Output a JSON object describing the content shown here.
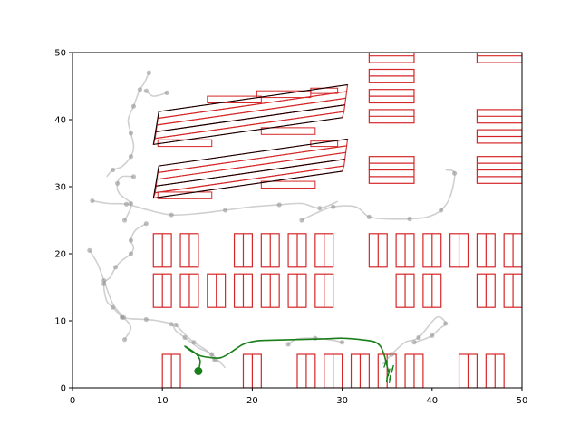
{
  "chart_data": {
    "type": "scatter",
    "title": "",
    "xlabel": "",
    "ylabel": "",
    "xlim": [
      0,
      50
    ],
    "ylim": [
      0,
      50
    ],
    "grid": false,
    "x_ticks": [
      "0",
      "10",
      "20",
      "30",
      "40",
      "50"
    ],
    "y_ticks": [
      "0",
      "10",
      "20",
      "30",
      "40",
      "50"
    ],
    "colors": {
      "parking_outline": "#d62728",
      "parking_line": "#000000",
      "ghost_trajectories": "#a9a9a9",
      "ego_path": "#1a7f1a",
      "ego_start": "#1a7f1a"
    },
    "parking_blocks": [
      {
        "x": 10,
        "y": 0,
        "w": 2,
        "h": 5,
        "n": 1
      },
      {
        "x": 19,
        "y": 0,
        "w": 2,
        "h": 5,
        "n": 1
      },
      {
        "x": 25,
        "y": 0,
        "w": 2,
        "h": 5,
        "n": 1
      },
      {
        "x": 28,
        "y": 0,
        "w": 2,
        "h": 5,
        "n": 1
      },
      {
        "x": 31,
        "y": 0,
        "w": 2,
        "h": 5,
        "n": 1
      },
      {
        "x": 34,
        "y": 0,
        "w": 2,
        "h": 5,
        "n": 1
      },
      {
        "x": 37,
        "y": 0,
        "w": 2,
        "h": 5,
        "n": 1
      },
      {
        "x": 43,
        "y": 0,
        "w": 2,
        "h": 5,
        "n": 1
      },
      {
        "x": 46,
        "y": 0,
        "w": 2,
        "h": 5,
        "n": 1
      },
      {
        "x": 9,
        "y": 12,
        "w": 2,
        "h": 5,
        "n": 1
      },
      {
        "x": 12,
        "y": 12,
        "w": 2,
        "h": 5,
        "n": 1
      },
      {
        "x": 15,
        "y": 12,
        "w": 2,
        "h": 5,
        "n": 1
      },
      {
        "x": 18,
        "y": 12,
        "w": 2,
        "h": 5,
        "n": 1
      },
      {
        "x": 21,
        "y": 12,
        "w": 2,
        "h": 5,
        "n": 1
      },
      {
        "x": 24,
        "y": 12,
        "w": 2,
        "h": 5,
        "n": 1
      },
      {
        "x": 27,
        "y": 12,
        "w": 2,
        "h": 5,
        "n": 1
      },
      {
        "x": 36,
        "y": 12,
        "w": 2,
        "h": 5,
        "n": 1
      },
      {
        "x": 39,
        "y": 12,
        "w": 2,
        "h": 5,
        "n": 1
      },
      {
        "x": 45,
        "y": 12,
        "w": 2,
        "h": 5,
        "n": 1
      },
      {
        "x": 48,
        "y": 12,
        "w": 2,
        "h": 5,
        "n": 1
      },
      {
        "x": 9,
        "y": 18,
        "w": 2,
        "h": 5,
        "n": 1
      },
      {
        "x": 12,
        "y": 18,
        "w": 2,
        "h": 5,
        "n": 1
      },
      {
        "x": 18,
        "y": 18,
        "w": 2,
        "h": 5,
        "n": 1
      },
      {
        "x": 21,
        "y": 18,
        "w": 2,
        "h": 5,
        "n": 1
      },
      {
        "x": 24,
        "y": 18,
        "w": 2,
        "h": 5,
        "n": 1
      },
      {
        "x": 27,
        "y": 18,
        "w": 2,
        "h": 5,
        "n": 1
      },
      {
        "x": 33,
        "y": 18,
        "w": 2,
        "h": 5,
        "n": 1
      },
      {
        "x": 36,
        "y": 18,
        "w": 2,
        "h": 5,
        "n": 1
      },
      {
        "x": 39,
        "y": 18,
        "w": 2,
        "h": 5,
        "n": 1
      },
      {
        "x": 42,
        "y": 18,
        "w": 2,
        "h": 5,
        "n": 1
      },
      {
        "x": 45,
        "y": 18,
        "w": 2,
        "h": 5,
        "n": 1
      },
      {
        "x": 48,
        "y": 18,
        "w": 2,
        "h": 5,
        "n": 1
      }
    ],
    "parking_stacks": [
      {
        "x": 33,
        "y": 30.5,
        "w": 5,
        "h": 2,
        "n": 2
      },
      {
        "x": 33,
        "y": 39.5,
        "w": 5,
        "h": 2,
        "n": 1
      },
      {
        "x": 33,
        "y": 42.5,
        "w": 5,
        "h": 2,
        "n": 1
      },
      {
        "x": 33,
        "y": 45.5,
        "w": 5,
        "h": 2,
        "n": 1
      },
      {
        "x": 33,
        "y": 48.5,
        "w": 5,
        "h": 2,
        "n": 1
      },
      {
        "x": 45,
        "y": 30.5,
        "w": 5,
        "h": 2,
        "n": 2
      },
      {
        "x": 45,
        "y": 36.5,
        "w": 5,
        "h": 2,
        "n": 1
      },
      {
        "x": 45,
        "y": 39.5,
        "w": 5,
        "h": 2,
        "n": 1
      },
      {
        "x": 45,
        "y": 48.5,
        "w": 5,
        "h": 2,
        "n": 1
      }
    ],
    "slanted_groups": [
      {
        "steps": [
          [
            9,
            28.3
          ],
          [
            9.2,
            29.1
          ],
          [
            9.3,
            30.1
          ],
          [
            9.4,
            31.1
          ],
          [
            9.5,
            32.1
          ],
          [
            9.6,
            33.1
          ]
        ],
        "width": 21,
        "rise": 4,
        "extras": [
          [
            9.5,
            28.2,
            6,
            1
          ],
          [
            21,
            29.8,
            6,
            1
          ],
          [
            26.5,
            36,
            3,
            0.8
          ]
        ]
      },
      {
        "steps": [
          [
            9,
            36.3
          ],
          [
            9.2,
            37.2
          ],
          [
            9.3,
            38.2
          ],
          [
            9.4,
            39.2
          ],
          [
            9.5,
            40.2
          ],
          [
            9.6,
            41.2
          ]
        ],
        "width": 21,
        "rise": 4,
        "extras": [
          [
            9.5,
            36,
            6,
            1
          ],
          [
            21,
            37.8,
            6,
            1
          ],
          [
            26.5,
            43.9,
            3,
            0.8
          ],
          [
            15,
            42.5,
            6,
            1
          ],
          [
            20.5,
            43.3,
            6,
            1
          ]
        ]
      }
    ],
    "ghost_trajectories": [
      [
        [
          8.5,
          47
        ],
        [
          8.0,
          45.5
        ],
        [
          7.5,
          44.5
        ],
        [
          7.2,
          43.5
        ],
        [
          6.8,
          42
        ],
        [
          6.2,
          40
        ],
        [
          6.5,
          38
        ],
        [
          6.8,
          36
        ],
        [
          6.5,
          34.5
        ],
        [
          5.5,
          33
        ],
        [
          4.5,
          32.5
        ],
        [
          3.8,
          31.5
        ]
      ],
      [
        [
          8.2,
          44.3
        ],
        [
          9,
          43.5
        ],
        [
          10.5,
          44
        ]
      ],
      [
        [
          6.8,
          31.5
        ],
        [
          5.5,
          31.5
        ],
        [
          5,
          30.5
        ],
        [
          5.2,
          29
        ],
        [
          6.5,
          27.5
        ],
        [
          6.2,
          26
        ],
        [
          5.8,
          25
        ]
      ],
      [
        [
          2.2,
          27.9
        ],
        [
          4,
          27.5
        ],
        [
          6,
          27.4
        ],
        [
          8.5,
          26.5
        ],
        [
          11,
          25.8
        ],
        [
          14,
          26
        ],
        [
          17,
          26.5
        ],
        [
          20,
          27
        ],
        [
          23,
          27.3
        ],
        [
          25.5,
          27.5
        ],
        [
          27.5,
          26.8
        ],
        [
          29.5,
          27.8
        ]
      ],
      [
        [
          25.5,
          25
        ],
        [
          27,
          26
        ],
        [
          29,
          27
        ],
        [
          31.5,
          27
        ],
        [
          33,
          25.5
        ],
        [
          35,
          25.2
        ],
        [
          37.5,
          25.2
        ],
        [
          39.5,
          25.5
        ],
        [
          41,
          26.5
        ],
        [
          42,
          28.5
        ],
        [
          42.5,
          32
        ],
        [
          41.5,
          32.5
        ]
      ],
      [
        [
          8.2,
          24.5
        ],
        [
          7,
          23.5
        ],
        [
          6.5,
          22
        ],
        [
          6.8,
          21
        ],
        [
          6.5,
          20
        ],
        [
          5.5,
          19
        ],
        [
          4.8,
          18
        ],
        [
          4.2,
          16.5
        ],
        [
          3.5,
          15.5
        ],
        [
          3.8,
          13
        ],
        [
          4.5,
          12
        ],
        [
          5.5,
          10.5
        ]
      ],
      [
        [
          1.9,
          20.5
        ],
        [
          2.8,
          18.5
        ],
        [
          3.5,
          16
        ],
        [
          4.5,
          12.5
        ],
        [
          5.7,
          10.5
        ],
        [
          6.5,
          9
        ],
        [
          5.8,
          7.2
        ]
      ],
      [
        [
          5.5,
          10.5
        ],
        [
          6.5,
          10.3
        ],
        [
          8.2,
          10.2
        ],
        [
          9.5,
          10
        ],
        [
          11,
          9.5
        ],
        [
          11.5,
          8.5
        ],
        [
          12.5,
          7.5
        ],
        [
          14,
          6
        ],
        [
          15.5,
          5
        ],
        [
          17,
          3
        ]
      ],
      [
        [
          11.5,
          9.4
        ],
        [
          12.5,
          8
        ],
        [
          13.5,
          6.8
        ],
        [
          15,
          5.5
        ],
        [
          15.8,
          4.2
        ],
        [
          16.5,
          3.8
        ]
      ],
      [
        [
          24,
          6.5
        ],
        [
          25,
          7.3
        ],
        [
          27,
          7.4
        ],
        [
          28.5,
          7.2
        ],
        [
          30,
          6.8
        ]
      ],
      [
        [
          38,
          6.8
        ],
        [
          39,
          7.2
        ],
        [
          40,
          7.8
        ],
        [
          40.8,
          8.8
        ],
        [
          41.5,
          9.6
        ],
        [
          40.5,
          10.5
        ],
        [
          38.5,
          7.5
        ],
        [
          37,
          6.8
        ],
        [
          35.5,
          5
        ],
        [
          34.5,
          3.5
        ]
      ]
    ],
    "ego_path": [
      [
        14,
        2.5
      ],
      [
        14.2,
        4
      ],
      [
        13.8,
        5
      ],
      [
        13,
        5.8
      ],
      [
        12.5,
        6.2
      ],
      [
        13.2,
        5.5
      ],
      [
        14.2,
        4.8
      ],
      [
        15.5,
        4.5
      ],
      [
        16.5,
        4.5
      ],
      [
        17.5,
        5.2
      ],
      [
        19,
        6.5
      ],
      [
        20.5,
        7
      ],
      [
        22,
        7.1
      ],
      [
        25,
        7.2
      ],
      [
        28,
        7.3
      ],
      [
        30,
        7.4
      ],
      [
        32,
        7.2
      ],
      [
        33.5,
        6.9
      ],
      [
        34.2,
        6.3
      ],
      [
        34.6,
        5.2
      ],
      [
        34.8,
        4.3
      ],
      [
        35,
        3.2
      ],
      [
        35.2,
        2.2
      ]
    ],
    "ego_start": [
      14,
      2.5
    ],
    "ego_arrows": [
      {
        "x": 35,
        "y": 1.5,
        "angle": 80
      },
      {
        "x": 35.2,
        "y": 2.3,
        "angle": 78
      },
      {
        "x": 35.3,
        "y": 1.3,
        "angle": 82
      },
      {
        "x": 35.6,
        "y": 2.8,
        "angle": 76
      },
      {
        "x": 34.8,
        "y": 3.6,
        "angle": 70
      }
    ]
  }
}
